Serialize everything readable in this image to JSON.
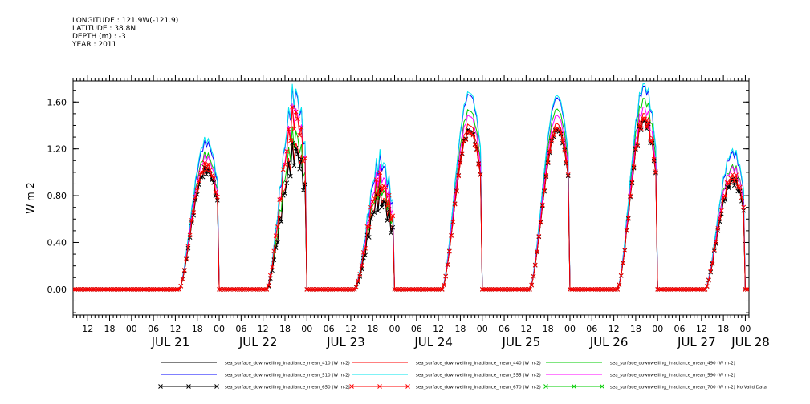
{
  "header": {
    "longitude": "LONGITUDE : 121.9W(-121.9)",
    "latitude": "LATITUDE : 38.8N",
    "depth": "DEPTH (m) : -3",
    "year": "YEAR : 2011"
  },
  "chart_data": {
    "type": "line",
    "ylabel": "W m-2",
    "ylim": [
      -0.22,
      1.78
    ],
    "yticks": [
      "0.00",
      "0.40",
      "0.80",
      "1.20",
      "1.60"
    ],
    "xlim_hours": [
      -16,
      169
    ],
    "hour_ticks": [
      "12",
      "18",
      "00",
      "06"
    ],
    "day_labels": [
      "JUL 21",
      "JUL 22",
      "JUL 23",
      "JUL 24",
      "JUL 25",
      "JUL 26",
      "JUL 27",
      "JUL 28"
    ],
    "daily_peak_values_by_series": {
      "sea_surface_downwelling_irradiance_mean_410": [
        1.05,
        1.12,
        0.75,
        1.38,
        1.37,
        1.45,
        0.95
      ],
      "sea_surface_downwelling_irradiance_mean_510": [
        1.27,
        1.6,
        1.05,
        1.68,
        1.63,
        1.73,
        1.18
      ],
      "sea_surface_downwelling_irradiance_mean_555": [
        1.3,
        1.62,
        1.08,
        1.7,
        1.65,
        1.75,
        1.2
      ],
      "sea_surface_downwelling_irradiance_mean_590": [
        1.15,
        1.45,
        0.95,
        1.5,
        1.48,
        1.55,
        1.05
      ],
      "sea_surface_downwelling_irradiance_mean_670": [
        1.08,
        1.42,
        0.88,
        1.36,
        1.37,
        1.45,
        0.98
      ]
    },
    "legend": [
      {
        "name": "sea_surface_downwelling_irradiance_mean_410 (W m-2)",
        "color": "#000000",
        "marker": "none"
      },
      {
        "name": "sea_surface_downwelling_irradiance_mean_440 (W m-2)",
        "color": "#ff0000",
        "marker": "none"
      },
      {
        "name": "sea_surface_downwelling_irradiance_mean_490 (W m-2)",
        "color": "#00cc00",
        "marker": "none"
      },
      {
        "name": "sea_surface_downwelling_irradiance_mean_510 (W m-2)",
        "color": "#0000ff",
        "marker": "none"
      },
      {
        "name": "sea_surface_downwelling_irradiance_mean_555 (W m-2)",
        "color": "#00e5ee",
        "marker": "none"
      },
      {
        "name": "sea_surface_downwelling_irradiance_mean_590 (W m-2)",
        "color": "#ff00ff",
        "marker": "none"
      },
      {
        "name": "sea_surface_downwelling_irradiance_mean_650 (W m-2)",
        "color": "#000000",
        "marker": "x"
      },
      {
        "name": "sea_surface_downwelling_irradiance_mean_670 (W m-2)",
        "color": "#ff0000",
        "marker": "x"
      },
      {
        "name": "sea_surface_downwelling_irradiance_mean_700 (W m-2) No Valid Data",
        "color": "#00cc00",
        "marker": "x"
      }
    ]
  }
}
